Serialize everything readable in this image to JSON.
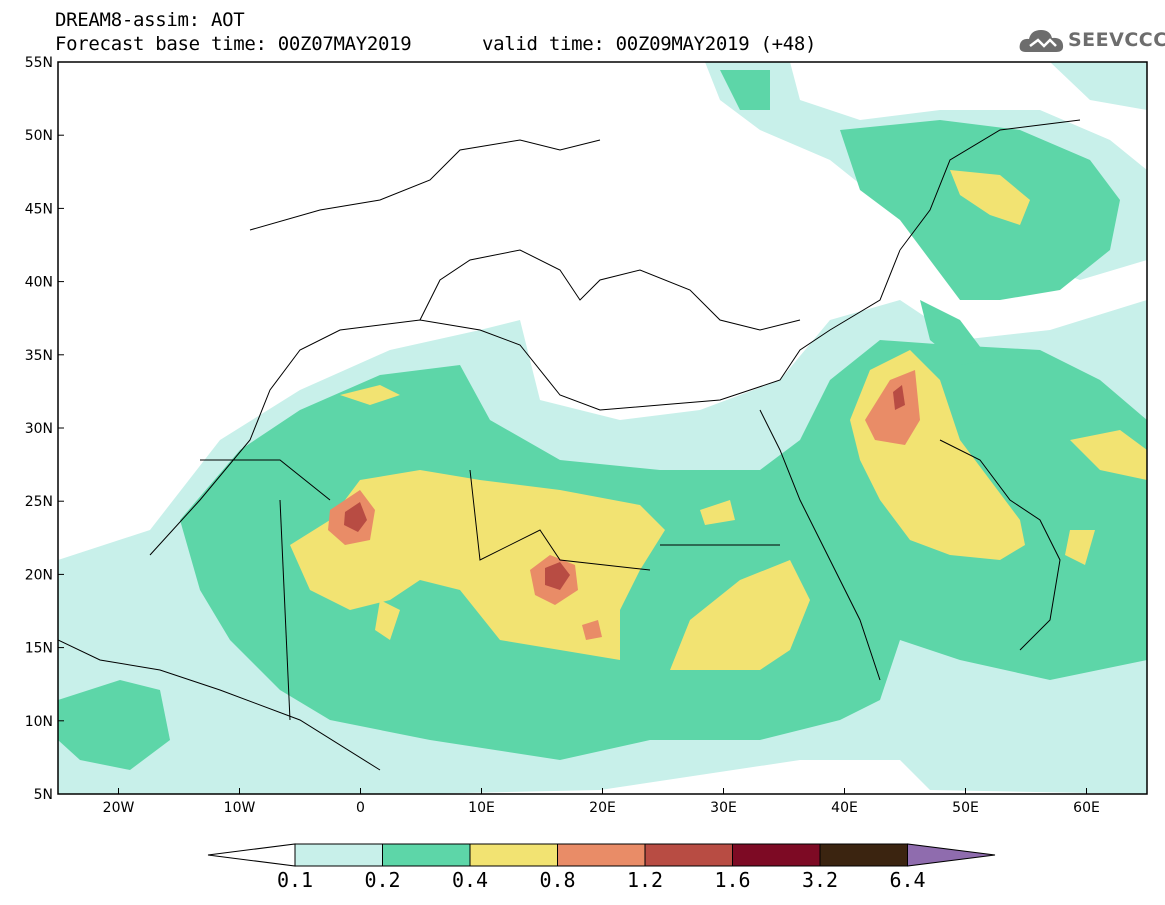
{
  "header": {
    "title": "DREAM8-assim: AOT",
    "base_time": "Forecast base time: 00Z07MAY2019",
    "valid_time": "valid time: 00Z09MAY2019 (+48)",
    "logo_text": "SEEVCCC",
    "logo_icon": "cloud-icon"
  },
  "map": {
    "lat_labels": [
      "55N",
      "50N",
      "45N",
      "40N",
      "35N",
      "30N",
      "25N",
      "20N",
      "15N",
      "10N",
      "5N"
    ],
    "lon_labels": [
      "20W",
      "10W",
      "0",
      "10E",
      "20E",
      "30E",
      "40E",
      "50E",
      "60E"
    ],
    "lon_range": [
      -25,
      65
    ],
    "lat_range": [
      5,
      55
    ]
  },
  "colorbar": {
    "labels": [
      "0.1",
      "0.2",
      "0.4",
      "0.8",
      "1.2",
      "1.6",
      "3.2",
      "6.4"
    ],
    "colors": [
      "#ffffff",
      "#c8f0ea",
      "#5dd6a8",
      "#f2e372",
      "#e98c67",
      "#b84c43",
      "#7d0a24",
      "#3b2410",
      "#8f6cae"
    ]
  }
}
